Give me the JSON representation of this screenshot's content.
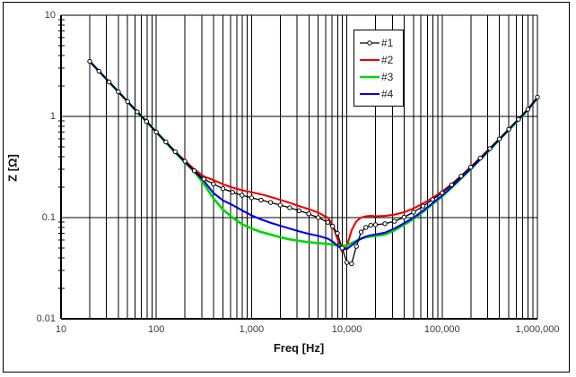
{
  "colors": {
    "background": "#ffffff",
    "frame_border": "#000000",
    "grid": "#000000",
    "tick_text": "#3a3a3a",
    "axis_title_text": "#111111"
  },
  "chart_data": {
    "type": "line",
    "title": "",
    "x_axis": {
      "label": "Freq [Hz]",
      "scale": "log",
      "min": 10,
      "max": 1000000,
      "tick_values": [
        10,
        100,
        1000,
        10000,
        100000,
        1000000
      ],
      "tick_labels": [
        "10",
        "100",
        "1,000",
        "10,000",
        "100,000",
        "1,000,000"
      ]
    },
    "y_axis": {
      "label": "Z [Ω]",
      "scale": "log",
      "min": 0.01,
      "max": 10,
      "tick_values": [
        10,
        1,
        0.1,
        0.01
      ],
      "tick_labels": [
        "10",
        "1",
        "0.1",
        "0.01"
      ]
    },
    "grid": {
      "vertical_minor_lines": true,
      "horizontal_major_lines_only": true,
      "y_minor_ticks_on_axis": true
    },
    "legend": {
      "position": "top-right",
      "border": true
    },
    "x": [
      20,
      25,
      32,
      40,
      50,
      63,
      79,
      100,
      126,
      158,
      200,
      251,
      316,
      398,
      501,
      631,
      794,
      1000,
      1259,
      1585,
      1995,
      2512,
      3162,
      3981,
      5012,
      6310,
      7079,
      7943,
      8913,
      10000,
      11220,
      12589,
      14125,
      15849,
      17783,
      19953,
      25119,
      31623,
      39811,
      50119,
      63096,
      79433,
      100000,
      125893,
      158489,
      199526,
      251189,
      316228,
      398107,
      501187,
      630957,
      794328,
      1000000
    ],
    "series": [
      {
        "name": "#1",
        "color": "#000000",
        "marker": "circle",
        "line_width": 1.3,
        "values": [
          3.5,
          2.8,
          2.19,
          1.75,
          1.4,
          1.11,
          0.89,
          0.7,
          0.56,
          0.448,
          0.36,
          0.29,
          0.24,
          0.215,
          0.193,
          0.178,
          0.166,
          0.157,
          0.149,
          0.141,
          0.133,
          0.125,
          0.117,
          0.109,
          0.1,
          0.09,
          0.082,
          0.07,
          0.05,
          0.036,
          0.035,
          0.052,
          0.072,
          0.08,
          0.084,
          0.085,
          0.087,
          0.092,
          0.101,
          0.113,
          0.13,
          0.151,
          0.176,
          0.211,
          0.257,
          0.315,
          0.388,
          0.481,
          0.598,
          0.747,
          0.936,
          1.175,
          1.55
        ]
      },
      {
        "name": "#2",
        "color": "#f00000",
        "marker": "none",
        "line_width": 2.1,
        "values": [
          3.5,
          2.8,
          2.19,
          1.75,
          1.4,
          1.11,
          0.89,
          0.7,
          0.56,
          0.448,
          0.365,
          0.3,
          0.255,
          0.235,
          0.214,
          0.198,
          0.186,
          0.178,
          0.17,
          0.16,
          0.15,
          0.14,
          0.13,
          0.121,
          0.112,
          0.1,
          0.085,
          0.062,
          0.046,
          0.052,
          0.075,
          0.092,
          0.1,
          0.103,
          0.104,
          0.103,
          0.104,
          0.107,
          0.113,
          0.123,
          0.138,
          0.157,
          0.181,
          0.214,
          0.259,
          0.316,
          0.389,
          0.482,
          0.599,
          0.748,
          0.937,
          1.176,
          1.55
        ]
      },
      {
        "name": "#3",
        "color": "#00d800",
        "marker": "none",
        "line_width": 2.7,
        "values": [
          3.5,
          2.8,
          2.19,
          1.75,
          1.4,
          1.11,
          0.89,
          0.7,
          0.555,
          0.44,
          0.35,
          0.285,
          0.215,
          0.155,
          0.12,
          0.1,
          0.086,
          0.078,
          0.072,
          0.068,
          0.064,
          0.061,
          0.059,
          0.057,
          0.056,
          0.055,
          0.054,
          0.053,
          0.053,
          0.053,
          0.056,
          0.059,
          0.062,
          0.064,
          0.065,
          0.066,
          0.068,
          0.075,
          0.085,
          0.097,
          0.114,
          0.136,
          0.162,
          0.198,
          0.244,
          0.302,
          0.375,
          0.468,
          0.585,
          0.734,
          0.923,
          1.162,
          1.52
        ]
      },
      {
        "name": "#4",
        "color": "#0000f0",
        "marker": "none",
        "line_width": 2.1,
        "values": [
          3.5,
          2.8,
          2.19,
          1.75,
          1.4,
          1.11,
          0.89,
          0.7,
          0.56,
          0.445,
          0.355,
          0.288,
          0.23,
          0.175,
          0.148,
          0.133,
          0.118,
          0.105,
          0.096,
          0.089,
          0.083,
          0.078,
          0.073,
          0.069,
          0.066,
          0.062,
          0.058,
          0.053,
          0.049,
          0.049,
          0.053,
          0.058,
          0.062,
          0.065,
          0.067,
          0.068,
          0.071,
          0.078,
          0.088,
          0.1,
          0.117,
          0.139,
          0.165,
          0.201,
          0.247,
          0.305,
          0.378,
          0.471,
          0.593,
          0.743,
          0.933,
          1.172,
          1.53
        ]
      }
    ]
  }
}
